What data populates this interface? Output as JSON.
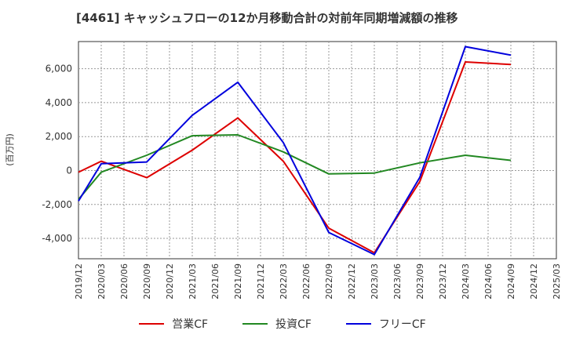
{
  "chart_data": {
    "type": "line",
    "title": "[4461]  キャッシュフローの12か月移動合計の対前年同期増減額の推移",
    "ylabel": "(百万円)",
    "xlabel": "",
    "ylim": [
      -5200,
      7600
    ],
    "yticks": [
      6000,
      4000,
      2000,
      0,
      -2000,
      -4000
    ],
    "ytick_labels": [
      "6,000",
      "4,000",
      "2,000",
      "0",
      "-2,000",
      "-4,000"
    ],
    "categories": [
      "2019/12",
      "2020/03",
      "2020/06",
      "2020/09",
      "2020/12",
      "2021/03",
      "2021/06",
      "2021/09",
      "2021/12",
      "2022/03",
      "2022/06",
      "2022/09",
      "2022/12",
      "2023/03",
      "2023/06",
      "2023/09",
      "2023/12",
      "2024/03",
      "2024/06",
      "2024/09",
      "2024/12",
      "2025/03"
    ],
    "grid": true,
    "legend_position": "bottom",
    "series": [
      {
        "name": "営業CF",
        "color": "#dd0000",
        "values": [
          -100,
          550,
          null,
          -420,
          null,
          1200,
          null,
          3100,
          null,
          550,
          null,
          -3400,
          null,
          -4850,
          null,
          -650,
          null,
          6400,
          null,
          6250,
          null,
          null
        ]
      },
      {
        "name": "投資CF",
        "color": "#228822",
        "values": [
          -1700,
          -100,
          null,
          900,
          null,
          2050,
          null,
          2100,
          null,
          1100,
          null,
          -200,
          null,
          -150,
          null,
          450,
          null,
          900,
          null,
          600,
          null,
          null
        ]
      },
      {
        "name": "フリーCF",
        "color": "#0000dd",
        "values": [
          -1800,
          400,
          null,
          500,
          null,
          3250,
          null,
          5200,
          null,
          1650,
          null,
          -3650,
          null,
          -4950,
          null,
          -400,
          null,
          7300,
          null,
          6800,
          null,
          null
        ]
      }
    ]
  }
}
